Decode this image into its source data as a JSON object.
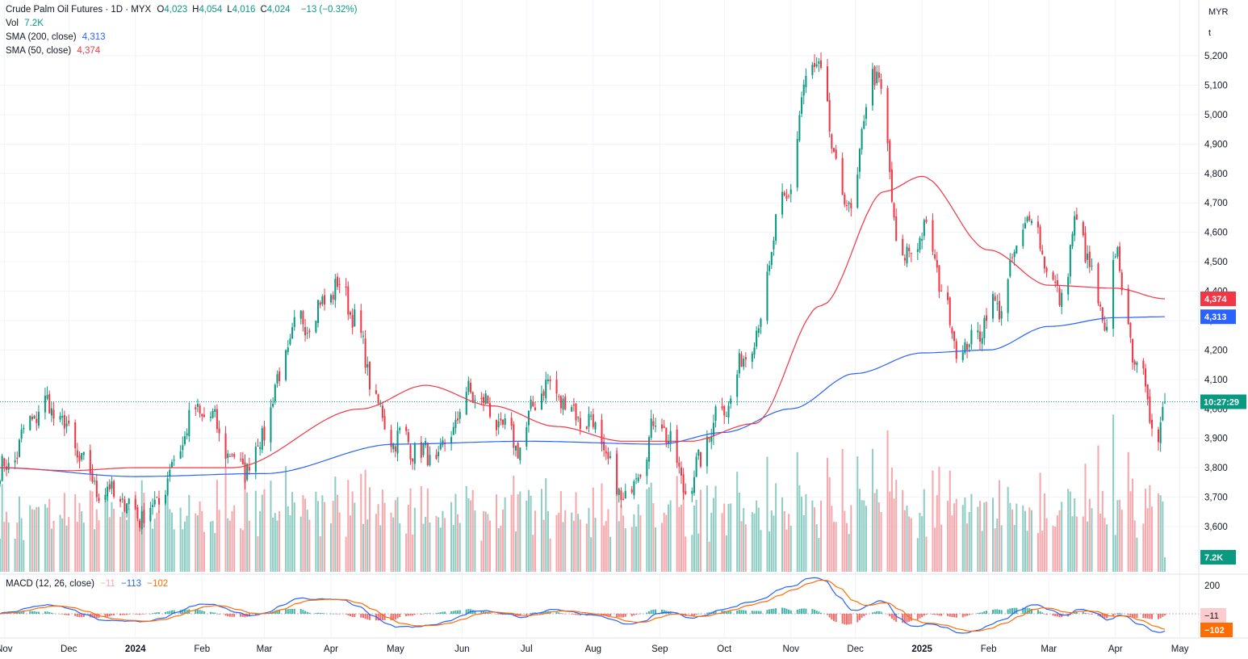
{
  "header": {
    "title": "Crude Palm Oil Futures · 1D · MYX",
    "ohlc": [
      {
        "label": "O",
        "value": "4,023"
      },
      {
        "label": "H",
        "value": "4,054"
      },
      {
        "label": "L",
        "value": "4,016"
      },
      {
        "label": "C",
        "value": "4,024"
      }
    ],
    "change": "−13 (−0.32%)",
    "vol_label": "Vol",
    "vol_value": "7.2K",
    "sma200_label": "SMA (200, close)",
    "sma200_value": "4,313",
    "sma50_label": "SMA (50, close)",
    "sma50_value": "4,374",
    "macd_label": "MACD (12, 26, close)",
    "macd_hist": "−11",
    "macd_line": "−113",
    "macd_signal": "−102"
  },
  "price_scale": {
    "currency": "MYR",
    "unit": "t",
    "ticks": [
      "5,200",
      "5,100",
      "5,000",
      "4,900",
      "4,800",
      "4,700",
      "4,600",
      "4,500",
      "4,400",
      "4,300",
      "4,200",
      "4,100",
      "4,000",
      "3,900",
      "3,800",
      "3,700",
      "3,600"
    ],
    "badges": {
      "sma50": "4,374",
      "sma200": "4,313",
      "countdown": "10:27:29",
      "volume": "7.2K"
    }
  },
  "macd_scale": {
    "ticks": [
      "200"
    ],
    "badges": {
      "hist": "−11",
      "signal": "−102"
    }
  },
  "time_axis": [
    "Nov",
    "Dec",
    "2024",
    "Feb",
    "Mar",
    "Apr",
    "May",
    "Jun",
    "Jul",
    "Aug",
    "Sep",
    "Oct",
    "Nov",
    "Dec",
    "2025",
    "Feb",
    "Mar",
    "Apr",
    "May"
  ],
  "colors": {
    "up": "#089981",
    "down": "#f23645",
    "up_volume": "#8fcdc4",
    "down_volume": "#f7a8ad",
    "sma200": "#2962ff",
    "sma50": "#f23645",
    "macd": "#2962ff",
    "signal": "#ff6d00"
  },
  "chart_data": {
    "type": "candlestick",
    "symbol": "Crude Palm Oil Futures",
    "interval": "1D",
    "y_range": [
      3540,
      5240
    ],
    "last": {
      "open": 4023,
      "high": 4054,
      "low": 4016,
      "close": 4024,
      "volume": "7.2K"
    },
    "price_anchors": [
      {
        "date": "2023-10-30",
        "close": 3790
      },
      {
        "date": "2023-11-20",
        "close": 4010
      },
      {
        "date": "2023-12-18",
        "close": 3720
      },
      {
        "date": "2024-01-05",
        "close": 3640
      },
      {
        "date": "2024-02-01",
        "close": 3990
      },
      {
        "date": "2024-02-20",
        "close": 3800
      },
      {
        "date": "2024-03-20",
        "close": 4300
      },
      {
        "date": "2024-04-04",
        "close": 4410
      },
      {
        "date": "2024-05-01",
        "close": 3900
      },
      {
        "date": "2024-05-20",
        "close": 3830
      },
      {
        "date": "2024-06-05",
        "close": 4050
      },
      {
        "date": "2024-06-28",
        "close": 3880
      },
      {
        "date": "2024-07-08",
        "close": 4080
      },
      {
        "date": "2024-07-30",
        "close": 3960
      },
      {
        "date": "2024-08-15",
        "close": 3700
      },
      {
        "date": "2024-09-01",
        "close": 3960
      },
      {
        "date": "2024-09-13",
        "close": 3740
      },
      {
        "date": "2024-10-01",
        "close": 4010
      },
      {
        "date": "2024-10-15",
        "close": 4250
      },
      {
        "date": "2024-10-28",
        "close": 4680
      },
      {
        "date": "2024-11-11",
        "close": 5180
      },
      {
        "date": "2024-11-28",
        "close": 4680
      },
      {
        "date": "2024-12-10",
        "close": 5150
      },
      {
        "date": "2024-12-23",
        "close": 4500
      },
      {
        "date": "2025-01-01",
        "close": 4600
      },
      {
        "date": "2025-01-20",
        "close": 4200
      },
      {
        "date": "2025-02-05",
        "close": 4350
      },
      {
        "date": "2025-02-20",
        "close": 4650
      },
      {
        "date": "2025-03-06",
        "close": 4380
      },
      {
        "date": "2025-03-14",
        "close": 4620
      },
      {
        "date": "2025-03-28",
        "close": 4270
      },
      {
        "date": "2025-04-01",
        "close": 4520
      },
      {
        "date": "2025-04-11",
        "close": 4150
      },
      {
        "date": "2025-04-21",
        "close": 3900
      },
      {
        "date": "2025-04-24",
        "close": 4024
      }
    ],
    "sma200_anchors": [
      {
        "date": "2023-10-30",
        "value": 3800
      },
      {
        "date": "2024-01-01",
        "value": 3770
      },
      {
        "date": "2024-03-01",
        "value": 3780
      },
      {
        "date": "2024-05-01",
        "value": 3880
      },
      {
        "date": "2024-07-01",
        "value": 3890
      },
      {
        "date": "2024-09-01",
        "value": 3880
      },
      {
        "date": "2024-10-01",
        "value": 3920
      },
      {
        "date": "2024-11-01",
        "value": 4000
      },
      {
        "date": "2024-12-01",
        "value": 4120
      },
      {
        "date": "2025-01-01",
        "value": 4190
      },
      {
        "date": "2025-02-01",
        "value": 4200
      },
      {
        "date": "2025-03-01",
        "value": 4280
      },
      {
        "date": "2025-04-01",
        "value": 4310
      },
      {
        "date": "2025-04-24",
        "value": 4313
      }
    ],
    "sma50_anchors": [
      {
        "date": "2023-10-30",
        "value": 3800
      },
      {
        "date": "2023-12-01",
        "value": 3790
      },
      {
        "date": "2024-01-01",
        "value": 3800
      },
      {
        "date": "2024-02-15",
        "value": 3800
      },
      {
        "date": "2024-04-15",
        "value": 4000
      },
      {
        "date": "2024-05-15",
        "value": 4080
      },
      {
        "date": "2024-06-15",
        "value": 4010
      },
      {
        "date": "2024-07-15",
        "value": 3940
      },
      {
        "date": "2024-08-15",
        "value": 3890
      },
      {
        "date": "2024-09-15",
        "value": 3890
      },
      {
        "date": "2024-10-15",
        "value": 3950
      },
      {
        "date": "2024-11-15",
        "value": 4350
      },
      {
        "date": "2024-12-15",
        "value": 4740
      },
      {
        "date": "2025-01-01",
        "value": 4790
      },
      {
        "date": "2025-02-01",
        "value": 4540
      },
      {
        "date": "2025-03-01",
        "value": 4420
      },
      {
        "date": "2025-04-01",
        "value": 4410
      },
      {
        "date": "2025-04-24",
        "value": 4374
      }
    ],
    "ylabel": "MYR"
  }
}
